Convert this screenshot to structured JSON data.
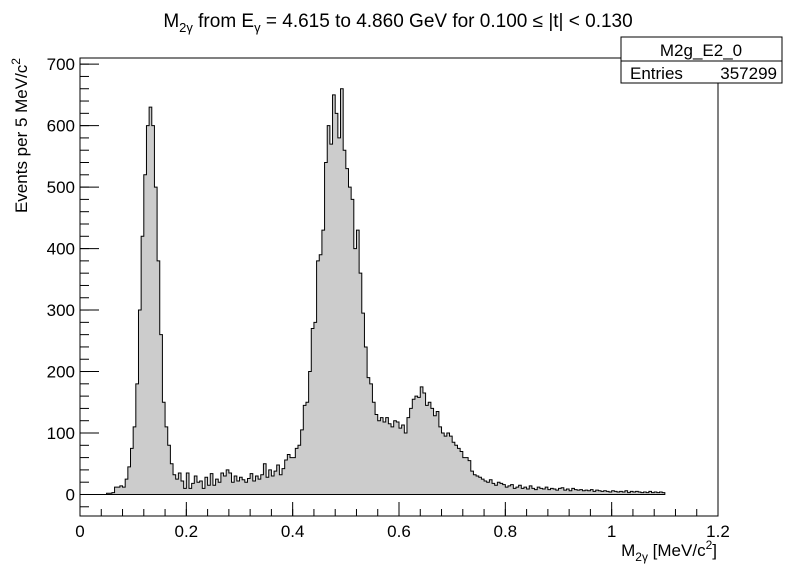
{
  "chart_data": {
    "type": "histogram",
    "title": "M₂ᵧ from Eᵧ = 4.615 to 4.860 GeV for 0.100 ≤ |t| < 0.130",
    "title_parts": {
      "base": "M",
      "base_sub": "2γ",
      "mid": " from E",
      "mid_sub": "γ",
      "rest": " = 4.615 to 4.860 GeV for 0.100 ≤ |t| < 0.130"
    },
    "xlabel_parts": {
      "base": "M",
      "sub": "2γ",
      "rest": " [MeV/c",
      "sup": "2",
      "end": "]"
    },
    "ylabel_parts": {
      "base": "Events per 5 MeV/c",
      "sup": "2"
    },
    "xlim": [
      0,
      1.2
    ],
    "ylim": [
      -35,
      710
    ],
    "x_ticks": [
      0,
      0.2,
      0.4,
      0.6,
      0.8,
      1,
      1.2
    ],
    "x_tick_labels": [
      "0",
      "0.2",
      "0.4",
      "0.6",
      "0.8",
      "1",
      "1.2"
    ],
    "y_ticks": [
      0,
      100,
      200,
      300,
      400,
      500,
      600,
      700
    ],
    "y_tick_labels": [
      "0",
      "100",
      "200",
      "300",
      "400",
      "500",
      "600",
      "700"
    ],
    "fill_color": "#cccccc",
    "line_color": "#000000",
    "bin_start": 0.05,
    "bin_width": 0.005,
    "values": [
      2,
      2,
      3,
      12,
      12,
      14,
      12,
      25,
      45,
      75,
      110,
      180,
      300,
      420,
      520,
      600,
      630,
      600,
      500,
      380,
      260,
      150,
      110,
      80,
      50,
      32,
      25,
      35,
      22,
      10,
      35,
      10,
      18,
      30,
      20,
      22,
      10,
      28,
      15,
      34,
      15,
      25,
      20,
      35,
      30,
      40,
      35,
      20,
      30,
      22,
      28,
      24,
      20,
      26,
      34,
      22,
      30,
      25,
      32,
      50,
      28,
      40,
      30,
      38,
      48,
      32,
      42,
      56,
      65,
      60,
      60,
      75,
      80,
      105,
      145,
      150,
      200,
      270,
      280,
      380,
      390,
      430,
      540,
      600,
      570,
      650,
      620,
      580,
      660,
      560,
      530,
      500,
      480,
      400,
      430,
      360,
      295,
      240,
      190,
      180,
      150,
      130,
      120,
      125,
      118,
      125,
      115,
      110,
      120,
      118,
      108,
      113,
      100,
      125,
      140,
      155,
      160,
      158,
      175,
      165,
      145,
      150,
      140,
      128,
      135,
      110,
      100,
      95,
      100,
      95,
      85,
      80,
      75,
      70,
      60,
      60,
      55,
      38,
      32,
      30,
      28,
      25,
      22,
      20,
      24,
      18,
      15,
      20,
      18,
      16,
      12,
      14,
      16,
      10,
      12,
      15,
      10,
      12,
      9,
      14,
      10,
      8,
      12,
      10,
      9,
      12,
      8,
      10,
      9,
      7,
      10,
      11,
      7,
      9,
      6,
      10,
      8,
      7,
      8,
      6,
      7,
      6,
      8,
      5,
      7,
      6,
      5,
      6,
      5,
      4,
      6,
      5,
      4,
      5,
      4,
      6,
      3,
      5,
      4,
      5,
      4,
      3,
      4,
      3,
      5,
      3,
      4,
      3,
      4,
      3
    ]
  },
  "stats_box": {
    "name": "M2g_E2_0",
    "entries_label": "Entries",
    "entries_value": "357299"
  }
}
